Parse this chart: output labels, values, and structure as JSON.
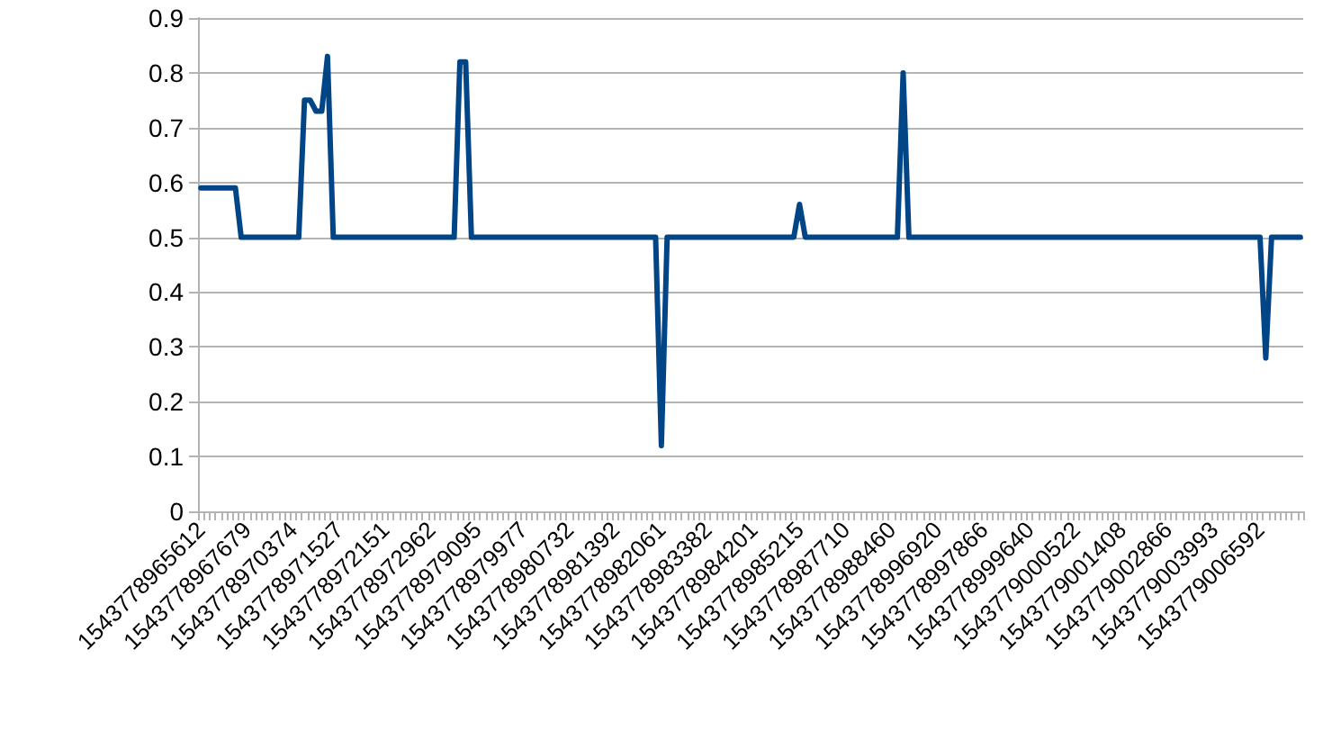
{
  "chart_data": {
    "type": "line",
    "line_style": "solid",
    "marker": "none",
    "grid": "y",
    "ylim": [
      0,
      0.9
    ],
    "yticks": [
      0,
      0.1,
      0.2,
      0.3,
      0.4,
      0.5,
      0.6,
      0.7,
      0.8,
      0.9
    ],
    "categories": [
      "1543778965612",
      null,
      null,
      null,
      null,
      null,
      null,
      null,
      "1543778967679",
      null,
      null,
      null,
      null,
      null,
      null,
      null,
      "1543778970374",
      null,
      null,
      null,
      null,
      null,
      null,
      null,
      "1543778971527",
      null,
      null,
      null,
      null,
      null,
      null,
      null,
      "1543778972151",
      null,
      null,
      null,
      null,
      null,
      null,
      null,
      "1543778972962",
      null,
      null,
      null,
      null,
      null,
      null,
      null,
      "1543778979095",
      null,
      null,
      null,
      null,
      null,
      null,
      null,
      "1543778979977",
      null,
      null,
      null,
      null,
      null,
      null,
      null,
      "1543778980732",
      null,
      null,
      null,
      null,
      null,
      null,
      null,
      "1543778981392",
      null,
      null,
      null,
      null,
      null,
      null,
      null,
      "1543778982061",
      null,
      null,
      null,
      null,
      null,
      null,
      null,
      "1543778983382",
      null,
      null,
      null,
      null,
      null,
      null,
      null,
      "1543778984201",
      null,
      null,
      null,
      null,
      null,
      null,
      null,
      "1543778985215",
      null,
      null,
      null,
      null,
      null,
      null,
      null,
      "1543778987710",
      null,
      null,
      null,
      null,
      null,
      null,
      null,
      "1543778988460",
      null,
      null,
      null,
      null,
      null,
      null,
      null,
      "1543778996920",
      null,
      null,
      null,
      null,
      null,
      null,
      null,
      "1543778997866",
      null,
      null,
      null,
      null,
      null,
      null,
      null,
      "1543778999640",
      null,
      null,
      null,
      null,
      null,
      null,
      null,
      "1543779000522",
      null,
      null,
      null,
      null,
      null,
      null,
      null,
      "1543779001408",
      null,
      null,
      null,
      null,
      null,
      null,
      null,
      "1543779002866",
      null,
      null,
      null,
      null,
      null,
      null,
      null,
      "1543779003993",
      null,
      null,
      null,
      null,
      null,
      null,
      null,
      "1543779006592",
      null,
      null,
      null,
      null,
      null,
      null,
      null
    ],
    "series": [
      {
        "color": "#004586",
        "values": [
          0.59,
          0.59,
          0.59,
          0.59,
          0.59,
          0.59,
          0.59,
          0.5,
          0.5,
          0.5,
          0.5,
          0.5,
          0.5,
          0.5,
          0.5,
          0.5,
          0.5,
          0.5,
          0.75,
          0.75,
          0.73,
          0.73,
          0.83,
          0.5,
          0.5,
          0.5,
          0.5,
          0.5,
          0.5,
          0.5,
          0.5,
          0.5,
          0.5,
          0.5,
          0.5,
          0.5,
          0.5,
          0.5,
          0.5,
          0.5,
          0.5,
          0.5,
          0.5,
          0.5,
          0.5,
          0.82,
          0.82,
          0.5,
          0.5,
          0.5,
          0.5,
          0.5,
          0.5,
          0.5,
          0.5,
          0.5,
          0.5,
          0.5,
          0.5,
          0.5,
          0.5,
          0.5,
          0.5,
          0.5,
          0.5,
          0.5,
          0.5,
          0.5,
          0.5,
          0.5,
          0.5,
          0.5,
          0.5,
          0.5,
          0.5,
          0.5,
          0.5,
          0.5,
          0.5,
          0.5,
          0.12,
          0.5,
          0.5,
          0.5,
          0.5,
          0.5,
          0.5,
          0.5,
          0.5,
          0.5,
          0.5,
          0.5,
          0.5,
          0.5,
          0.5,
          0.5,
          0.5,
          0.5,
          0.5,
          0.5,
          0.5,
          0.5,
          0.5,
          0.5,
          0.56,
          0.5,
          0.5,
          0.5,
          0.5,
          0.5,
          0.5,
          0.5,
          0.5,
          0.5,
          0.5,
          0.5,
          0.5,
          0.5,
          0.5,
          0.5,
          0.5,
          0.5,
          0.8,
          0.5,
          0.5,
          0.5,
          0.5,
          0.5,
          0.5,
          0.5,
          0.5,
          0.5,
          0.5,
          0.5,
          0.5,
          0.5,
          0.5,
          0.5,
          0.5,
          0.5,
          0.5,
          0.5,
          0.5,
          0.5,
          0.5,
          0.5,
          0.5,
          0.5,
          0.5,
          0.5,
          0.5,
          0.5,
          0.5,
          0.5,
          0.5,
          0.5,
          0.5,
          0.5,
          0.5,
          0.5,
          0.5,
          0.5,
          0.5,
          0.5,
          0.5,
          0.5,
          0.5,
          0.5,
          0.5,
          0.5,
          0.5,
          0.5,
          0.5,
          0.5,
          0.5,
          0.5,
          0.5,
          0.5,
          0.5,
          0.5,
          0.5,
          0.5,
          0.5,
          0.5,
          0.5,
          0.28,
          0.5,
          0.5,
          0.5,
          0.5,
          0.5,
          0.5
        ]
      }
    ]
  }
}
